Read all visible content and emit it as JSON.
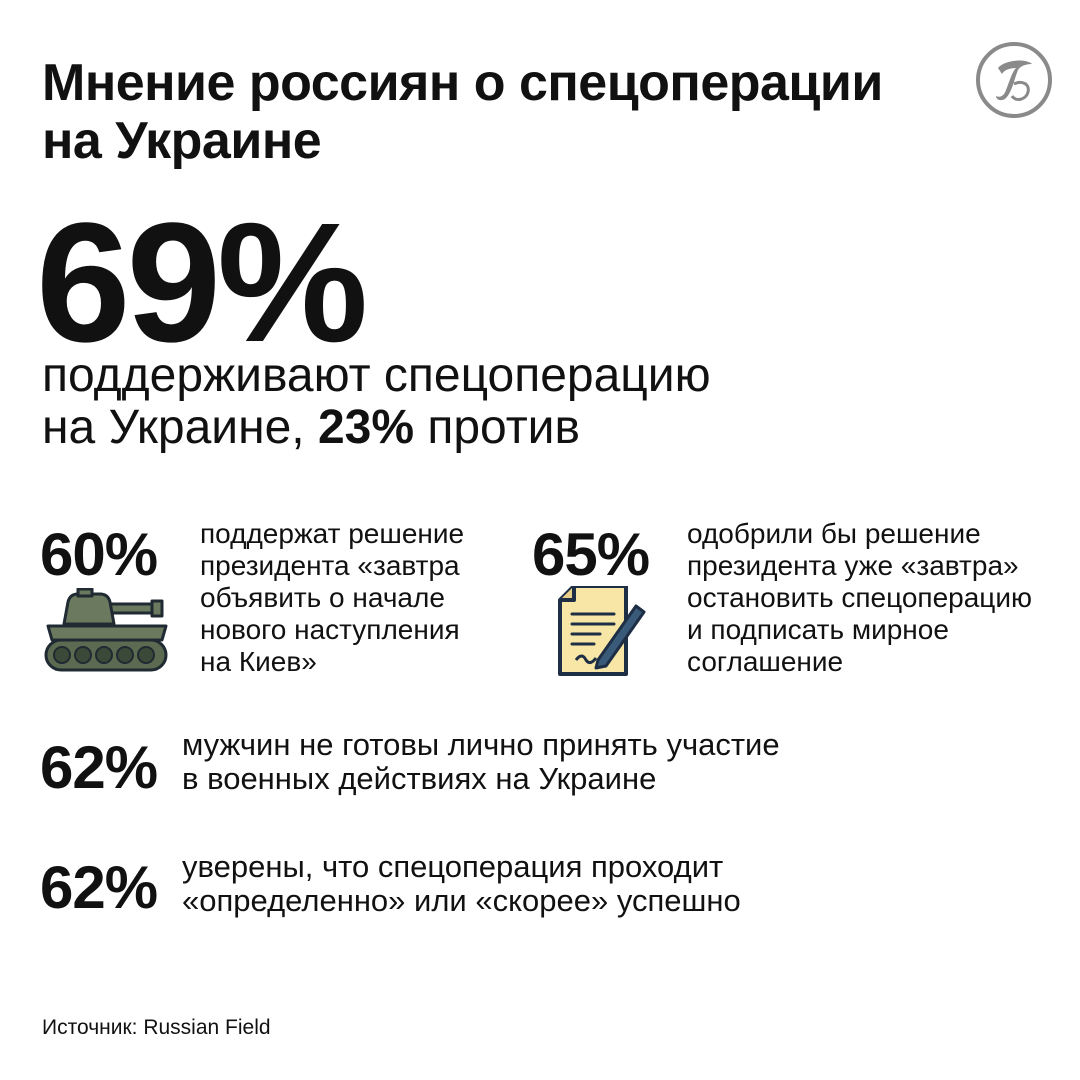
{
  "header": {
    "title_line1": "Мнение россиян о спецоперации",
    "title_line2": "на Украине",
    "logo_icon": "newspaper-logo-icon"
  },
  "main_stat": {
    "percent": "69%",
    "desc_line1": "поддерживают спецоперацию",
    "desc_line2_start": "на Украине, ",
    "desc_line2_bold": "23%",
    "desc_line2_end": " против"
  },
  "stats": [
    {
      "percent": "60%",
      "icon": "tank-icon",
      "lines": [
        "поддержат решение",
        "президента «завтра",
        "объявить о начале",
        "нового наступления",
        "на Киев»"
      ]
    },
    {
      "percent": "65%",
      "icon": "document-pen-icon",
      "lines": [
        "одобрили бы решение",
        "президента уже «завтра»",
        "остановить спецоперацию",
        "и подписать мирное",
        "соглашение"
      ]
    },
    {
      "percent": "62%",
      "lines": [
        "мужчин не готовы лично принять участие",
        "в военных действиях на Украине"
      ]
    },
    {
      "percent": "62%",
      "lines": [
        "уверены, что спецоперация проходит",
        "«определенно» или «скорее» успешно"
      ]
    }
  ],
  "footer": {
    "source": "Источник: Russian Field"
  },
  "colors": {
    "text": "#111111",
    "tank_green": "#6b7a5e",
    "paper_yellow": "#f8e6a6",
    "outline": "#1e2f45",
    "pen_blue": "#3a5a7a"
  }
}
